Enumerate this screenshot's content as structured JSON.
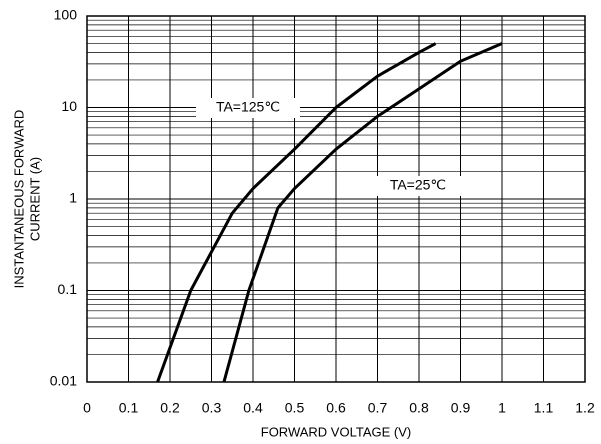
{
  "chart_data": {
    "type": "line",
    "xlabel": "FORWARD VOLTAGE (V)",
    "ylabel": [
      "INSTANTANEOUS FORWARD",
      "CURRENT (A)"
    ],
    "series": [
      {
        "name": "TA=125℃",
        "color": "#000000",
        "x": [
          0.17,
          0.25,
          0.35,
          0.4,
          0.5,
          0.6,
          0.7,
          0.8,
          0.84
        ],
        "values": [
          0.01,
          0.1,
          0.7,
          1.3,
          3.5,
          10,
          22,
          40,
          50
        ]
      },
      {
        "name": "TA=25℃",
        "color": "#000000",
        "x": [
          0.33,
          0.39,
          0.46,
          0.5,
          0.6,
          0.7,
          0.8,
          0.9,
          1.0
        ],
        "values": [
          0.01,
          0.1,
          0.8,
          1.3,
          3.5,
          8,
          16,
          32,
          50
        ]
      }
    ],
    "xlim": [
      0,
      1.2
    ],
    "xticks": [
      0,
      0.1,
      0.2,
      0.3,
      0.4,
      0.5,
      0.6,
      0.7,
      0.8,
      0.9,
      1,
      1.1,
      1.2
    ],
    "ylim": [
      0.01,
      100
    ],
    "yticks": [
      0.01,
      0.1,
      1,
      10,
      100
    ],
    "yminorticks": [
      0.02,
      0.03,
      0.04,
      0.05,
      0.06,
      0.07,
      0.08,
      0.09,
      0.2,
      0.3,
      0.4,
      0.5,
      0.6,
      0.7,
      0.8,
      0.9,
      2,
      3,
      4,
      5,
      6,
      7,
      8,
      9,
      20,
      30,
      40,
      50,
      60,
      70,
      80,
      90
    ],
    "ylog": true,
    "grid": true
  }
}
